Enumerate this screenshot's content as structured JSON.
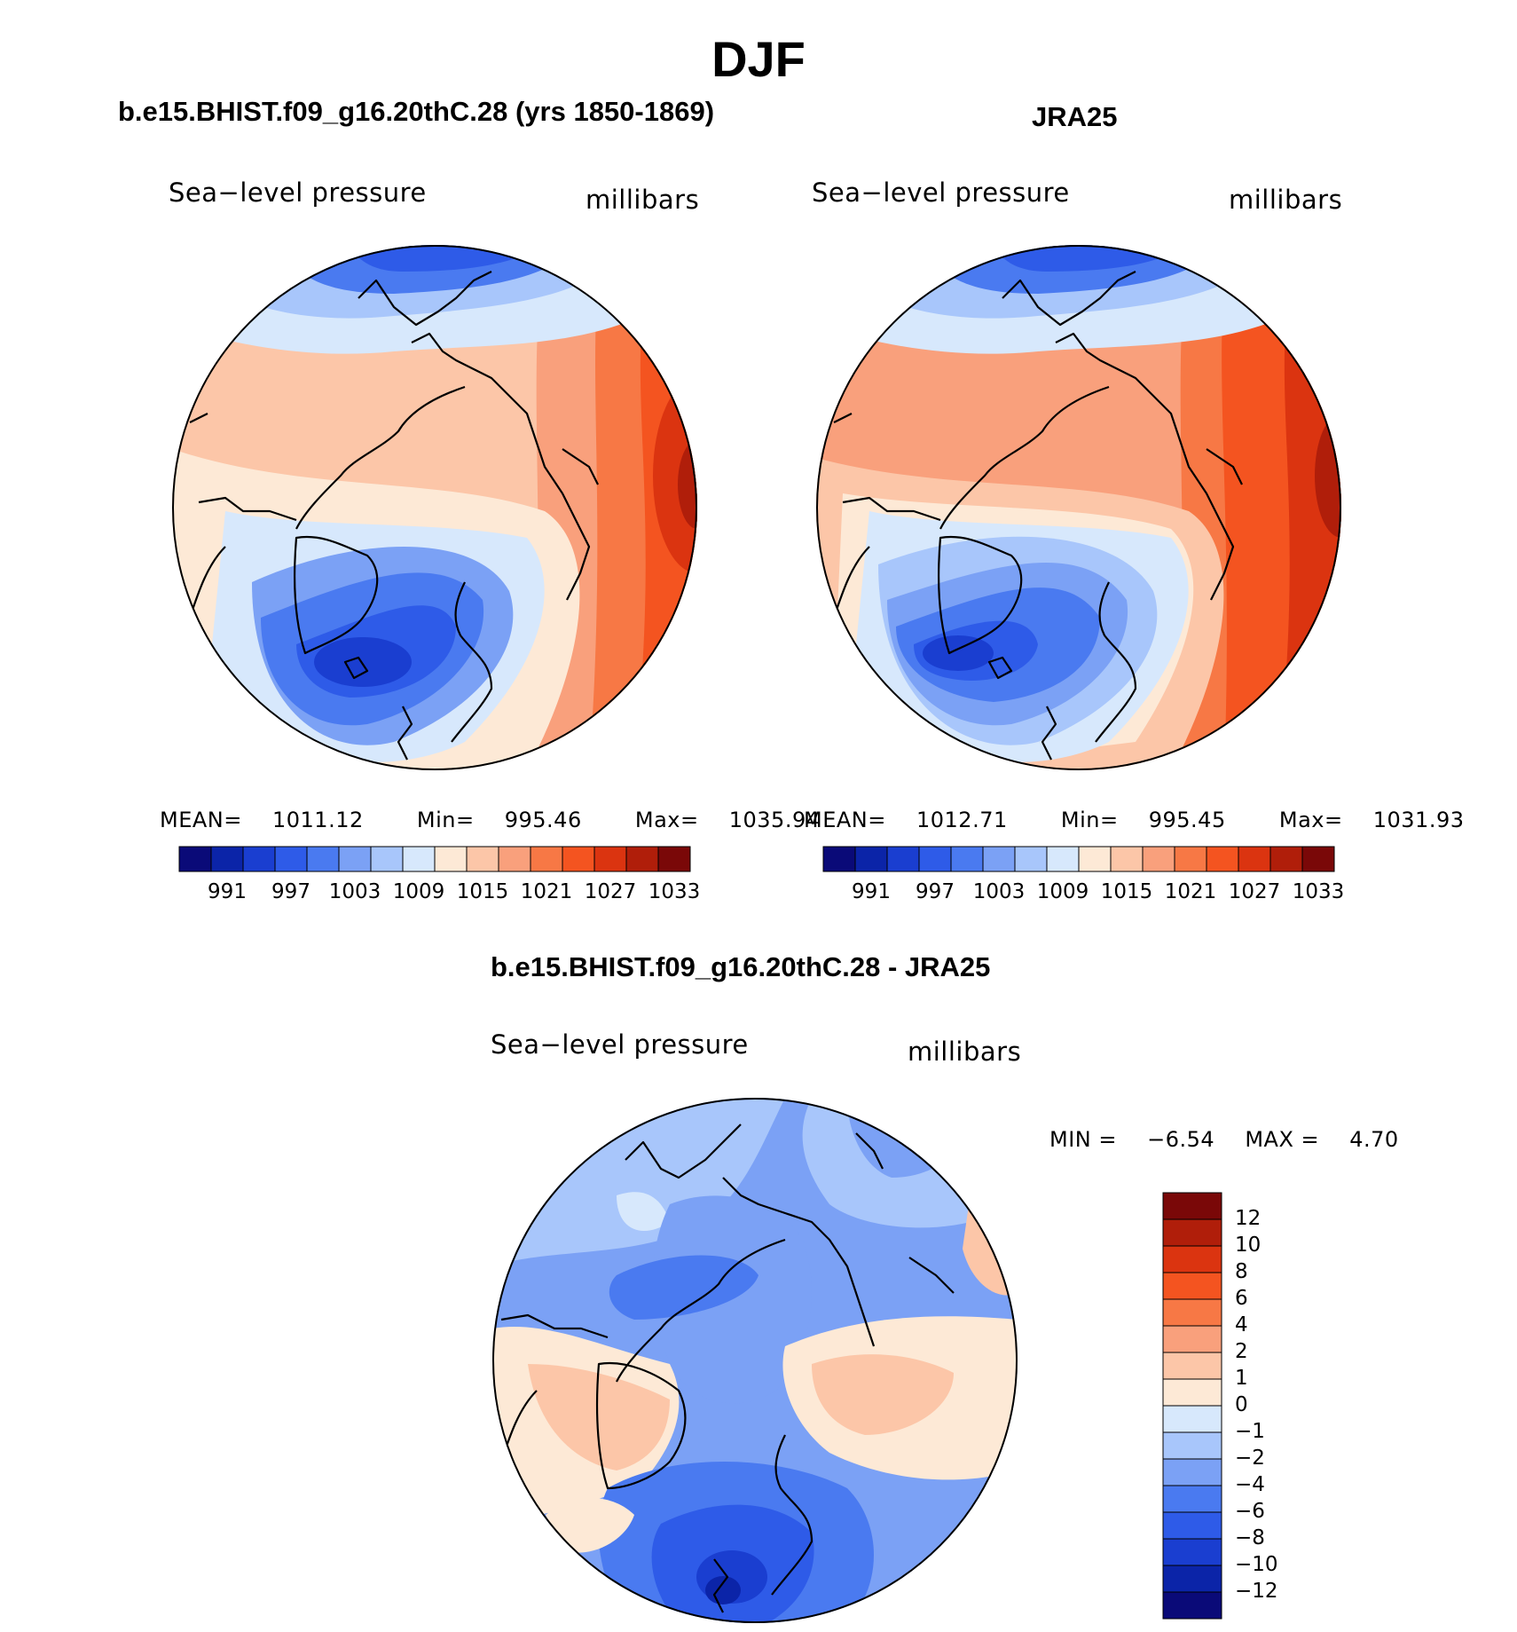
{
  "figure": {
    "title": "DJF",
    "left_panel": {
      "title": "b.e15.BHIST.f09_g16.20thC.28 (yrs 1850-1869)",
      "variable": "Sea−level pressure",
      "units": "millibars",
      "stats": {
        "mean_label": "MEAN=",
        "mean": "1011.12",
        "min_label": "Min=",
        "min": "995.46",
        "max_label": "Max=",
        "max": "1035.94"
      }
    },
    "right_panel": {
      "title": "JRA25",
      "variable": "Sea−level pressure",
      "units": "millibars",
      "stats": {
        "mean_label": "MEAN=",
        "mean": "1012.71",
        "min_label": "Min=",
        "min": "995.45",
        "max_label": "Max=",
        "max": "1031.93"
      }
    },
    "diff_panel": {
      "title": "b.e15.BHIST.f09_g16.20thC.28 - JRA25",
      "variable": "Sea−level pressure",
      "units": "millibars",
      "minmax": {
        "min_label": "MIN =",
        "min": "−6.54",
        "max_label": "MAX =",
        "max": "4.70"
      }
    },
    "abs_colorbar": {
      "labels": [
        "991",
        "997",
        "1003",
        "1009",
        "1015",
        "1021",
        "1027",
        "1033"
      ],
      "colors": [
        "#0a0a78",
        "#0b24a8",
        "#1a3ed0",
        "#2e5be8",
        "#4a7af0",
        "#7ba1f5",
        "#a8c6fb",
        "#d7e8fc",
        "#fde9d6",
        "#fcc6a8",
        "#f9a07c",
        "#f77845",
        "#f45420",
        "#db3410",
        "#b01e0a",
        "#7a0808"
      ]
    },
    "diff_colorbar": {
      "labels": [
        "12",
        "10",
        "8",
        "6",
        "4",
        "2",
        "1",
        "0",
        "−1",
        "−2",
        "−4",
        "−6",
        "−8",
        "−10",
        "−12"
      ],
      "colors": [
        "#7a0808",
        "#b01e0a",
        "#db3410",
        "#f45420",
        "#f77845",
        "#f9a07c",
        "#fcc6a8",
        "#fde9d6",
        "#d7e8fc",
        "#a8c6fb",
        "#7ba1f5",
        "#4a7af0",
        "#2e5be8",
        "#1a3ed0",
        "#0b24a8",
        "#0a0a78"
      ]
    }
  }
}
